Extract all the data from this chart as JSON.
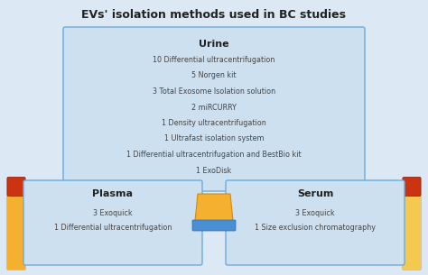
{
  "title": "EVs' isolation methods used in BC studies",
  "background_color": "#dce9f5",
  "box_color": "#cde0f0",
  "box_edge_color": "#6aabdf",
  "urine_box": {
    "label": "Urine",
    "items": [
      "10 Differential ultracentrifugation",
      "5 Norgen kit",
      "3 Total Exosome Isolation solution",
      "2 miRCURRY",
      "1 Density ultracentrifugation",
      "1 Ultrafast isolation system",
      "1 Differential ultracentrifugation and BestBio kit",
      "1 ExoDisk"
    ]
  },
  "plasma_box": {
    "label": "Plasma",
    "items": [
      "3 Exoquick",
      "1 Differential ultracentrifugation"
    ]
  },
  "serum_box": {
    "label": "Serum",
    "items": [
      "3 Exoquick",
      "1 Size exclusion chromatography"
    ]
  }
}
